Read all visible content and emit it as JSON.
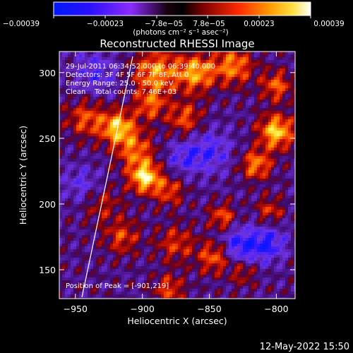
{
  "chart_data": {
    "type": "heatmap",
    "title": "Reconstructed RHESSI Image",
    "xlabel": "Heliocentric X (arcsec)",
    "ylabel": "Heliocentric Y (arcsec)",
    "xlim": [
      -962,
      -786
    ],
    "ylim": [
      128,
      316
    ],
    "x_ticks": [
      -950,
      -900,
      -850,
      -800
    ],
    "x_tick_labels": [
      "−950",
      "−900",
      "−850",
      "−800"
    ],
    "y_ticks": [
      150,
      200,
      250,
      300
    ],
    "y_tick_labels": [
      "150",
      "200",
      "250",
      "300"
    ],
    "colorbar": {
      "range": [
        -0.00039,
        0.00039
      ],
      "tick_labels": [
        "−0.00039",
        "−0.00023",
        "−7.8e−05",
        "7.8e−05",
        "0.00023",
        "0.00039"
      ],
      "units_label": "(photons cm⁻² s⁻¹ asec⁻²)"
    },
    "annotations": [
      "29-Jul-2011 06:34:52.000 to 06:39:40.000",
      "Detectors: 3F 4F 5F 6F 7F 8F, Att 0",
      "Energy Range: 25.0 - 50.0 keV",
      "Clean    Total counts: 7.46E+03"
    ],
    "peak_label": "Position of Peak = [-901,219]",
    "peak": [
      -901,
      219
    ],
    "colors": {
      "background": "#000000",
      "text": "#ffffff"
    }
  },
  "footer_timestamp": "12-May-2022 15:50"
}
